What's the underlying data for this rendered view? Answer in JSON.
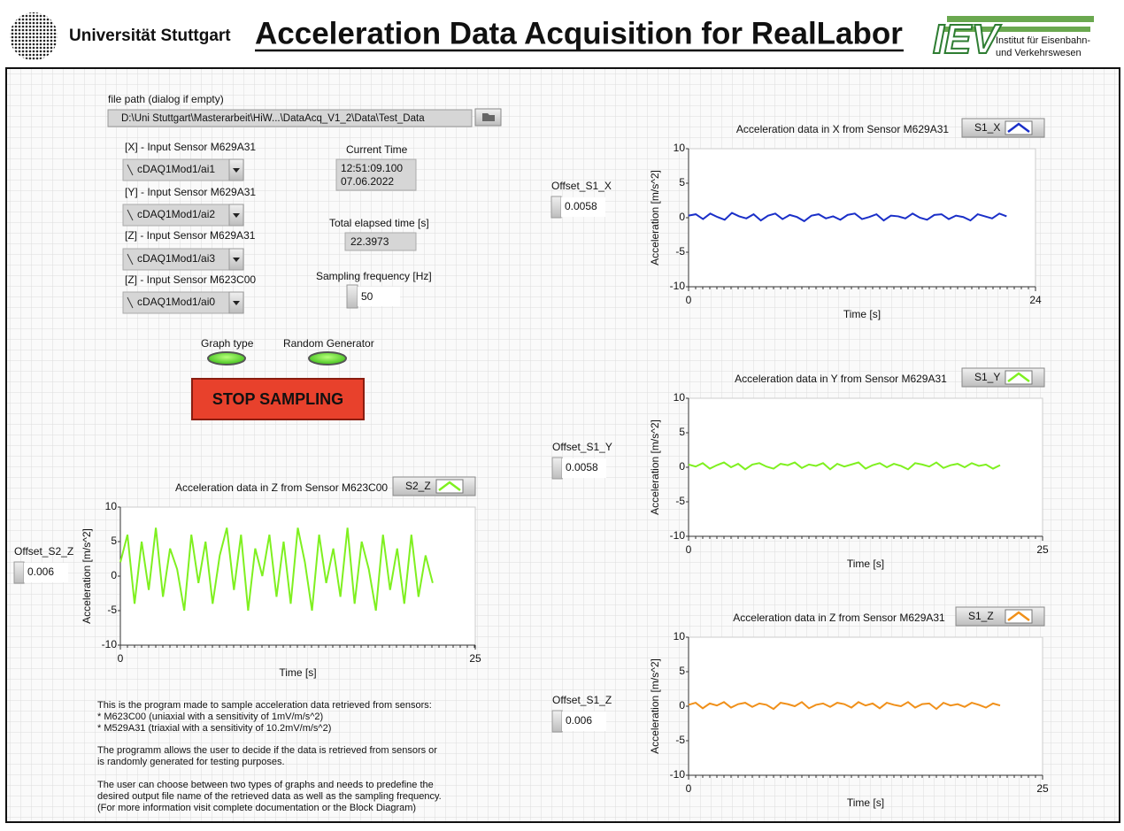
{
  "header": {
    "university": "Universität Stuttgart",
    "title": "Acceleration Data Acquisition for RealLabor",
    "logo": "IEV",
    "institute": [
      "Institut für Eisenbahn-",
      "und Verkehrswesen"
    ]
  },
  "controls": {
    "file_path": {
      "label": "file path (dialog if empty)",
      "value": "D:\\Uni Stuttgart\\Masterarbeit\\HiW...\\DataAcq_V1_2\\Data\\Test_Data"
    },
    "channels": [
      {
        "label": "[X] - Input Sensor M629A31",
        "value": "cDAQ1Mod1/ai1"
      },
      {
        "label": "[Y] - Input Sensor M629A31",
        "value": "cDAQ1Mod1/ai2"
      },
      {
        "label": "[Z] - Input Sensor M629A31",
        "value": "cDAQ1Mod1/ai3"
      },
      {
        "label": "[Z] - Input Sensor M623C00",
        "value": "cDAQ1Mod1/ai0"
      }
    ],
    "current_time": {
      "label": "Current Time",
      "lines": [
        "12:51:09.100",
        "07.06.2022"
      ]
    },
    "elapsed": {
      "label": "Total elapsed time [s]",
      "value": "22.3973"
    },
    "sampling": {
      "label": "Sampling frequency [Hz]",
      "value": "50"
    },
    "leds": [
      {
        "label": "Graph type"
      },
      {
        "label": "Random Generator"
      }
    ],
    "stop_button": "STOP SAMPLING",
    "offsets": [
      {
        "label": "Offset_S1_X",
        "value": "0.0058"
      },
      {
        "label": "Offset_S1_Y",
        "value": "0.0058"
      },
      {
        "label": "Offset_S1_Z",
        "value": "0.006"
      },
      {
        "label": "Offset_S2_Z",
        "value": "0.006"
      }
    ]
  },
  "description": [
    "This is the program made to sample acceleration data retrieved from sensors:",
    "* M623C00 (uniaxial with a sensitivity of 1mV/m/s^2)",
    "* M529A31 (triaxial with a sensitivity of 10.2mV/m/s^2)",
    "The programm allows the user to decide if the data is retrieved from sensors or",
    "is randomly generated for testing purposes.",
    "The user can choose between two types of graphs and needs to predefine the",
    "desired output file name of the retrieved data as well as the sampling frequency.",
    "(For more information visit complete documentation or the Block Diagram)"
  ],
  "chart_data": [
    {
      "type": "line",
      "title": "Acceleration data in X from Sensor M629A31",
      "xlabel": "Time [s]",
      "ylabel": "Acceleration [m/s^2]",
      "xlim": [
        0,
        24
      ],
      "xticks": [
        0,
        24
      ],
      "ylim": [
        -10,
        10
      ],
      "yticks": [
        -10,
        -5,
        0,
        5,
        10
      ],
      "grid": false,
      "x": [
        0,
        0.5,
        1,
        1.5,
        2,
        2.5,
        3,
        3.5,
        4,
        4.5,
        5,
        5.5,
        6,
        6.5,
        7,
        7.5,
        8,
        8.5,
        9,
        9.5,
        10,
        10.5,
        11,
        11.5,
        12,
        12.5,
        13,
        13.5,
        14,
        14.5,
        15,
        15.5,
        16,
        16.5,
        17,
        17.5,
        18,
        18.5,
        19,
        19.5,
        20,
        20.5,
        21,
        21.5,
        22
      ],
      "series": [
        {
          "name": "S1_X",
          "color": "#1a2fc8",
          "values": [
            0.3,
            0.5,
            -0.2,
            0.6,
            0.1,
            -0.3,
            0.7,
            0.2,
            -0.1,
            0.5,
            -0.4,
            0.3,
            0.6,
            -0.2,
            0.4,
            0.1,
            -0.5,
            0.3,
            0.5,
            -0.1,
            0.2,
            -0.3,
            0.4,
            0.6,
            -0.2,
            0.1,
            0.5,
            -0.4,
            0.3,
            0.2,
            -0.1,
            0.6,
            0,
            -0.3,
            0.4,
            0.5,
            -0.2,
            0.3,
            0.1,
            -0.4,
            0.5,
            0.2,
            -0.1,
            0.6,
            0.2
          ]
        }
      ]
    },
    {
      "type": "line",
      "title": "Acceleration data in Y from Sensor M629A31",
      "xlabel": "Time [s]",
      "ylabel": "Acceleration [m/s^2]",
      "xlim": [
        0,
        25
      ],
      "xticks": [
        0,
        25
      ],
      "ylim": [
        -10,
        10
      ],
      "yticks": [
        -10,
        -5,
        0,
        5,
        10
      ],
      "grid": false,
      "x": [
        0,
        0.5,
        1,
        1.5,
        2,
        2.5,
        3,
        3.5,
        4,
        4.5,
        5,
        5.5,
        6,
        6.5,
        7,
        7.5,
        8,
        8.5,
        9,
        9.5,
        10,
        10.5,
        11,
        11.5,
        12,
        12.5,
        13,
        13.5,
        14,
        14.5,
        15,
        15.5,
        16,
        16.5,
        17,
        17.5,
        18,
        18.5,
        19,
        19.5,
        20,
        20.5,
        21,
        21.5,
        22
      ],
      "series": [
        {
          "name": "S1_Y",
          "color": "#7ff020",
          "values": [
            0.4,
            0.1,
            0.6,
            -0.2,
            0.3,
            0.7,
            0,
            0.5,
            -0.3,
            0.4,
            0.6,
            0.1,
            -0.2,
            0.5,
            0.3,
            0.7,
            -0.1,
            0.4,
            0.2,
            0.6,
            -0.3,
            0.5,
            0.1,
            0.4,
            0.7,
            -0.2,
            0.3,
            0.6,
            0,
            0.5,
            0.2,
            -0.3,
            0.6,
            0.4,
            0.1,
            0.7,
            -0.1,
            0.3,
            0.5,
            0,
            0.6,
            0.2,
            0.4,
            -0.2,
            0.3
          ]
        }
      ]
    },
    {
      "type": "line",
      "title": "Acceleration data in Z from Sensor M629A31",
      "xlabel": "Time [s]",
      "ylabel": "Acceleration [m/s^2]",
      "xlim": [
        0,
        25
      ],
      "xticks": [
        0,
        25
      ],
      "ylim": [
        -10,
        10
      ],
      "yticks": [
        -10,
        -5,
        0,
        5,
        10
      ],
      "grid": false,
      "x": [
        0,
        0.5,
        1,
        1.5,
        2,
        2.5,
        3,
        3.5,
        4,
        4.5,
        5,
        5.5,
        6,
        6.5,
        7,
        7.5,
        8,
        8.5,
        9,
        9.5,
        10,
        10.5,
        11,
        11.5,
        12,
        12.5,
        13,
        13.5,
        14,
        14.5,
        15,
        15.5,
        16,
        16.5,
        17,
        17.5,
        18,
        18.5,
        19,
        19.5,
        20,
        20.5,
        21,
        21.5,
        22
      ],
      "series": [
        {
          "name": "S1_Z",
          "color": "#f0901a",
          "values": [
            0.2,
            0.5,
            -0.3,
            0.4,
            0.1,
            0.6,
            -0.2,
            0.3,
            0.5,
            -0.1,
            0.4,
            0.2,
            -0.4,
            0.5,
            0.3,
            0,
            0.6,
            -0.3,
            0.2,
            0.4,
            -0.1,
            0.5,
            0.3,
            -0.2,
            0.6,
            0.1,
            0.4,
            -0.3,
            0.5,
            0.2,
            0,
            0.6,
            -0.2,
            0.3,
            0.4,
            -0.4,
            0.5,
            0.1,
            0.3,
            -0.1,
            0.5,
            0.2,
            -0.2,
            0.4,
            0.1
          ]
        }
      ]
    },
    {
      "type": "line",
      "title": "Acceleration data in Z from Sensor M623C00",
      "xlabel": "Time [s]",
      "ylabel": "Acceleration [m/s^2]",
      "xlim": [
        0,
        25
      ],
      "xticks": [
        0,
        25
      ],
      "ylim": [
        -10,
        10
      ],
      "yticks": [
        -10,
        -5,
        0,
        5,
        10
      ],
      "grid": false,
      "x": [
        0,
        0.5,
        1,
        1.5,
        2,
        2.5,
        3,
        3.5,
        4,
        4.5,
        5,
        5.5,
        6,
        6.5,
        7,
        7.5,
        8,
        8.5,
        9,
        9.5,
        10,
        10.5,
        11,
        11.5,
        12,
        12.5,
        13,
        13.5,
        14,
        14.5,
        15,
        15.5,
        16,
        16.5,
        17,
        17.5,
        18,
        18.5,
        19,
        19.5,
        20,
        20.5,
        21,
        21.5,
        22
      ],
      "series": [
        {
          "name": "S2_Z",
          "color": "#7ff020",
          "values": [
            2,
            6,
            -4,
            5,
            -2,
            7,
            -3,
            4,
            1,
            -5,
            6,
            -1,
            5,
            -4,
            3,
            7,
            -2,
            6,
            -5,
            4,
            0,
            6,
            -3,
            5,
            -4,
            7,
            2,
            -5,
            6,
            -1,
            4,
            -3,
            7,
            -4,
            5,
            1,
            -5,
            6,
            -2,
            4,
            -4,
            6,
            -3,
            3,
            -1
          ]
        }
      ]
    }
  ]
}
